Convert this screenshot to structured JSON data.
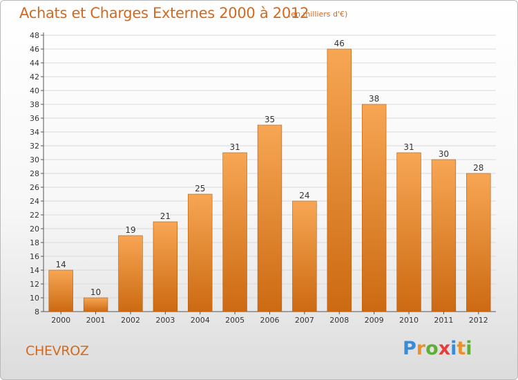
{
  "header": {
    "title": "Achats et Charges Externes 2000 à 2012",
    "subtitle": "(en milliers d'€)"
  },
  "footer": {
    "commune": "CHEVROZ",
    "brand_letters": [
      {
        "ch": "P",
        "color": "#3a8ad6"
      },
      {
        "ch": "r",
        "color": "#e8912d"
      },
      {
        "ch": "o",
        "color": "#5fae3a"
      },
      {
        "ch": "x",
        "color": "#e23f3f"
      },
      {
        "ch": "i",
        "color": "#3a8ad6"
      },
      {
        "ch": "t",
        "color": "#e8912d"
      },
      {
        "ch": "i",
        "color": "#5fae3a"
      }
    ]
  },
  "colors": {
    "accent": "#d2691e",
    "bar_top": "#f7a654",
    "bar_bottom": "#cc6a12",
    "bar_edge": "#b35a0c",
    "grid": "#d9d9d9",
    "axis": "#555555"
  },
  "chart_data": {
    "type": "bar",
    "categories": [
      "2000",
      "2001",
      "2002",
      "2003",
      "2004",
      "2005",
      "2006",
      "2007",
      "2008",
      "2009",
      "2010",
      "2011",
      "2012"
    ],
    "values": [
      14,
      10,
      19,
      21,
      25,
      31,
      35,
      24,
      46,
      38,
      31,
      30,
      28
    ],
    "ylim": [
      8,
      48
    ],
    "ytick_step": 2,
    "grid": true,
    "data_labels": true
  }
}
